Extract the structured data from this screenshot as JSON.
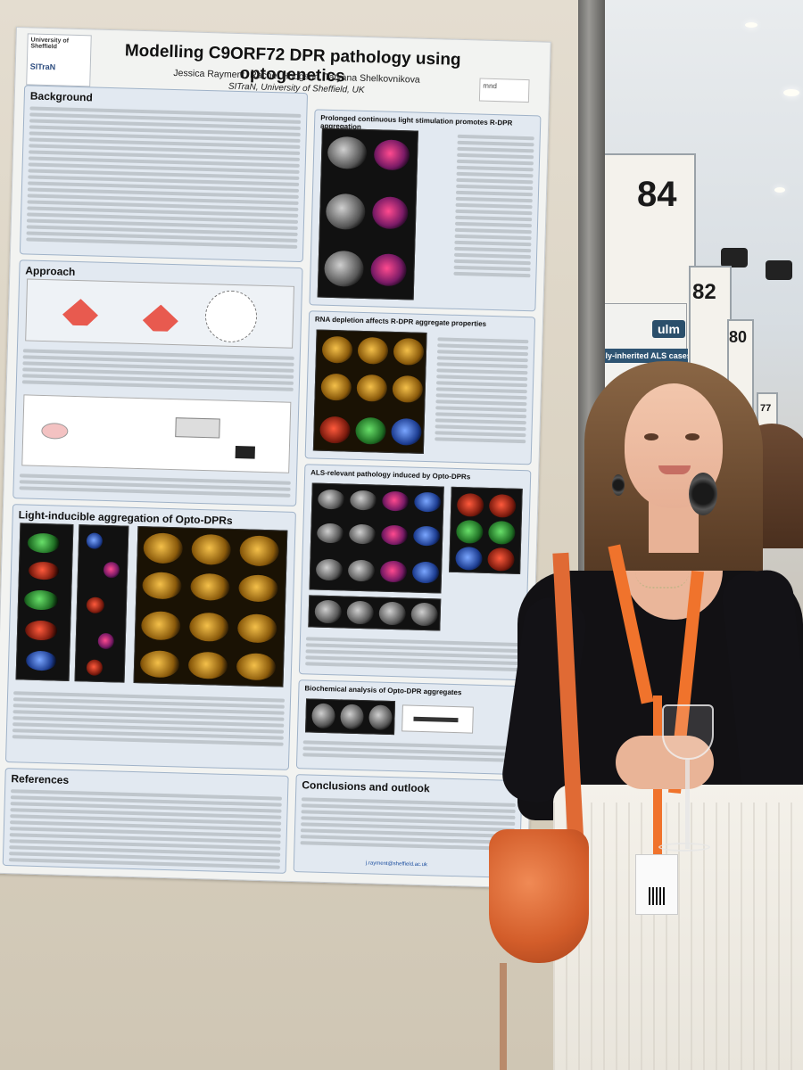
{
  "poster": {
    "university": "University of Sheffield",
    "institute_logo": "SITraN",
    "title": "Modelling C9ORF72 DPR pathology using optogenetics",
    "authors": "Jessica Rayment, Rachel Hodgson, Tatyana Shelkovnikova",
    "affiliation": "SITraN, University of Sheffield, UK",
    "sponsor_logo": "mnd",
    "sections": {
      "background": "Background",
      "approach": "Approach",
      "light_inducible": "Light-inducible aggregation of Opto-DPRs",
      "references": "References",
      "prolonged": "Prolonged continuous light stimulation promotes R-DPR aggregation",
      "rna_depletion": "RNA depletion affects R-DPR aggregate properties",
      "als_pathology": "ALS-relevant pathology induced by Opto-DPRs",
      "biochemical": "Biochemical analysis of Opto-DPR aggregates",
      "conclusions": "Conclusions and outlook"
    },
    "contact": "j.rayment@sheffield.ac.uk"
  },
  "booth_numbers": {
    "near": "84",
    "mid": "82",
    "far": "80",
    "farther": "77"
  },
  "neighbor_poster_text": "ulm",
  "neighbor_poster_title": "mally-inherited ALS cases"
}
